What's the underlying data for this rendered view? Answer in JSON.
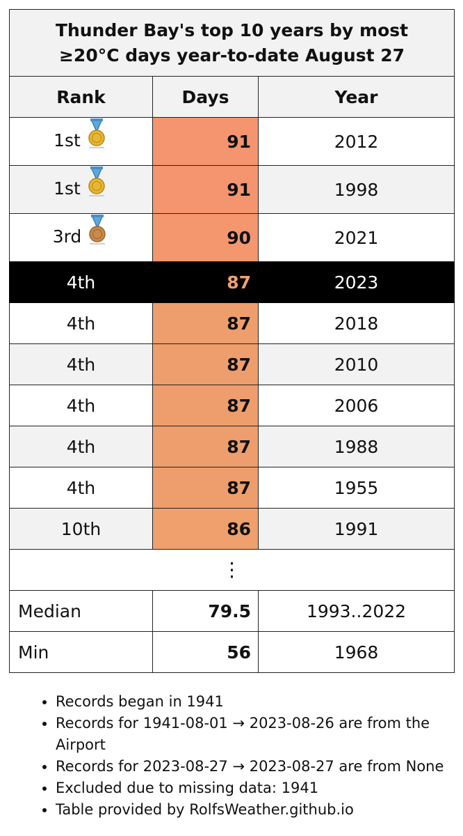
{
  "table": {
    "title": "Thunder Bay's top 10 years by most ≥20°C days year-to-date August 27",
    "headers": {
      "rank": "Rank",
      "days": "Days",
      "year": "Year"
    },
    "rows": [
      {
        "rank": "1st",
        "days": "91",
        "year": "2012",
        "medal": "gold-medal-icon",
        "color": "#f5956f"
      },
      {
        "rank": "1st",
        "days": "91",
        "year": "1998",
        "medal": "gold-medal-icon",
        "color": "#f5956f"
      },
      {
        "rank": "3rd",
        "days": "90",
        "year": "2021",
        "medal": "bronze-medal-icon",
        "color": "#f4976e"
      },
      {
        "rank": "4th",
        "days": "87",
        "year": "2023",
        "highlight": true,
        "color": "#f0a070"
      },
      {
        "rank": "4th",
        "days": "87",
        "year": "2018",
        "color": "#ee9e6c"
      },
      {
        "rank": "4th",
        "days": "87",
        "year": "2010",
        "color": "#ee9e6c"
      },
      {
        "rank": "4th",
        "days": "87",
        "year": "2006",
        "color": "#ee9e6c"
      },
      {
        "rank": "4th",
        "days": "87",
        "year": "1988",
        "color": "#ee9e6c"
      },
      {
        "rank": "4th",
        "days": "87",
        "year": "1955",
        "color": "#ee9e6c"
      },
      {
        "rank": "10th",
        "days": "86",
        "year": "1991",
        "color": "#efa06d"
      }
    ],
    "ellipsis": "⋮",
    "median": {
      "label": "Median",
      "days": "79.5",
      "year": "1993..2022"
    },
    "min": {
      "label": "Min",
      "days": "56",
      "year": "1968"
    }
  },
  "notes": [
    "Records began in 1941",
    "Records for 1941-08-01 → 2023-08-26 are from the Airport",
    "Records for 2023-08-27 → 2023-08-27 are from None",
    "Excluded due to missing data: 1941",
    "Table provided by RolfsWeather.github.io"
  ]
}
